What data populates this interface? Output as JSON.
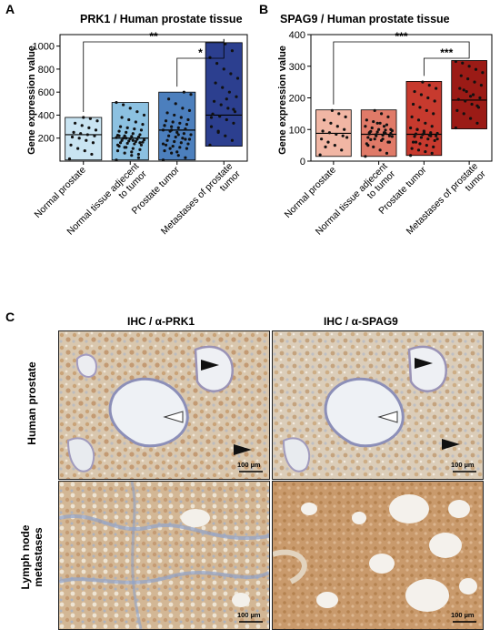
{
  "panels": {
    "a_letter": "A",
    "b_letter": "B",
    "c_letter": "C"
  },
  "chart_data": [
    {
      "type": "box",
      "title": "PRK1 / Human prostate tissue",
      "ylabel": "Gene expression value",
      "xlabel": "",
      "ylim": [
        0,
        1100
      ],
      "yticks": [
        200,
        400,
        600,
        800,
        1000
      ],
      "categories": [
        "Normal prostate",
        "Normal tissue adjecent to tumor",
        "Prostate tumor",
        "Metastases of prostate tumor"
      ],
      "category_lines": [
        [
          "Normal prostate"
        ],
        [
          "Normal tissue adjecent",
          "to tumor"
        ],
        [
          "Prostate tumor"
        ],
        [
          "Metastases of prostate",
          "tumor"
        ]
      ],
      "boxes": [
        {
          "min": 10,
          "median": 230,
          "max": 380,
          "color": "#c9e4f2"
        },
        {
          "min": 10,
          "median": 200,
          "max": 510,
          "color": "#8cc1e1"
        },
        {
          "min": 10,
          "median": 270,
          "max": 600,
          "color": "#4c7fbd"
        },
        {
          "min": 130,
          "median": 400,
          "max": 1030,
          "color": "#2c3f8f"
        }
      ],
      "points": [
        [
          20,
          60,
          90,
          110,
          140,
          160,
          180,
          200,
          210,
          220,
          230,
          240,
          250,
          270,
          290,
          310,
          330,
          350,
          370,
          380
        ],
        [
          10,
          30,
          50,
          70,
          90,
          100,
          110,
          120,
          130,
          140,
          150,
          155,
          160,
          165,
          170,
          175,
          180,
          185,
          190,
          195,
          200,
          205,
          210,
          215,
          220,
          225,
          230,
          240,
          250,
          260,
          270,
          280,
          290,
          300,
          320,
          340,
          360,
          380,
          400,
          430,
          460,
          490,
          510,
          60,
          80,
          120,
          140,
          160,
          180,
          200,
          220
        ],
        [
          10,
          30,
          50,
          70,
          90,
          110,
          120,
          130,
          140,
          150,
          160,
          170,
          180,
          190,
          200,
          210,
          220,
          230,
          240,
          250,
          260,
          270,
          280,
          290,
          300,
          310,
          320,
          330,
          340,
          350,
          360,
          380,
          400,
          420,
          440,
          460,
          500,
          540,
          580,
          600,
          80,
          110,
          150,
          190,
          230,
          270,
          310
        ],
        [
          140,
          180,
          220,
          260,
          300,
          330,
          360,
          390,
          410,
          430,
          460,
          490,
          520,
          560,
          600,
          640,
          680,
          720,
          760,
          800,
          850,
          900,
          960,
          1020,
          250,
          380,
          450,
          540
        ]
      ],
      "significance": [
        {
          "from": 0,
          "to": 3,
          "label": "**"
        },
        {
          "from": 2,
          "to": 3,
          "label": "*"
        }
      ]
    },
    {
      "type": "box",
      "title": "SPAG9 / Human prostate tissue",
      "ylabel": "Gene expression value",
      "xlabel": "",
      "ylim": [
        0,
        400
      ],
      "yticks": [
        0,
        100,
        200,
        300,
        400
      ],
      "categories": [
        "Normal prostate",
        "Normal tissue adjecent to tumor",
        "Prostate tumor",
        "Metastases of prostate tumor"
      ],
      "category_lines": [
        [
          "Normal prostate"
        ],
        [
          "Normal tissue adjecent",
          "to tumor"
        ],
        [
          "Prostate tumor"
        ],
        [
          "Metastases of prostate",
          "tumor"
        ]
      ],
      "boxes": [
        {
          "min": 15,
          "median": 88,
          "max": 162,
          "color": "#f1b6a4"
        },
        {
          "min": 15,
          "median": 85,
          "max": 162,
          "color": "#e07a68"
        },
        {
          "min": 18,
          "median": 85,
          "max": 252,
          "color": "#c73a2e"
        },
        {
          "min": 102,
          "median": 193,
          "max": 318,
          "color": "#9b1b16"
        }
      ],
      "points": [
        [
          20,
          35,
          50,
          60,
          70,
          80,
          85,
          90,
          95,
          100,
          110,
          120,
          130,
          140,
          150,
          160,
          45,
          75
        ],
        [
          15,
          25,
          35,
          45,
          55,
          60,
          65,
          70,
          75,
          80,
          82,
          84,
          86,
          88,
          90,
          92,
          94,
          96,
          98,
          100,
          105,
          110,
          115,
          120,
          125,
          130,
          140,
          150,
          160,
          50,
          60,
          70,
          80,
          90,
          100,
          110,
          120,
          68,
          78,
          88
        ],
        [
          18,
          25,
          30,
          35,
          40,
          45,
          50,
          55,
          60,
          65,
          70,
          75,
          78,
          80,
          82,
          84,
          86,
          88,
          90,
          95,
          100,
          105,
          110,
          120,
          130,
          140,
          150,
          160,
          170,
          180,
          190,
          200,
          210,
          220,
          230,
          240,
          250,
          60,
          70,
          80,
          90,
          100
        ],
        [
          105,
          120,
          135,
          150,
          160,
          170,
          180,
          190,
          195,
          200,
          210,
          220,
          230,
          240,
          250,
          260,
          270,
          280,
          290,
          300,
          310,
          315,
          175,
          205,
          225
        ]
      ],
      "significance": [
        {
          "from": 0,
          "to": 3,
          "label": "***"
        },
        {
          "from": 2,
          "to": 3,
          "label": "***"
        }
      ]
    }
  ],
  "ihc": {
    "col_prk1": "IHC / α-PRK1",
    "col_spag9": "IHC / α-SPAG9",
    "row_human": "Human prostate",
    "row_lymph_1": "Lymph node",
    "row_lymph_2": "metastases",
    "scalebar": "100 µm"
  }
}
